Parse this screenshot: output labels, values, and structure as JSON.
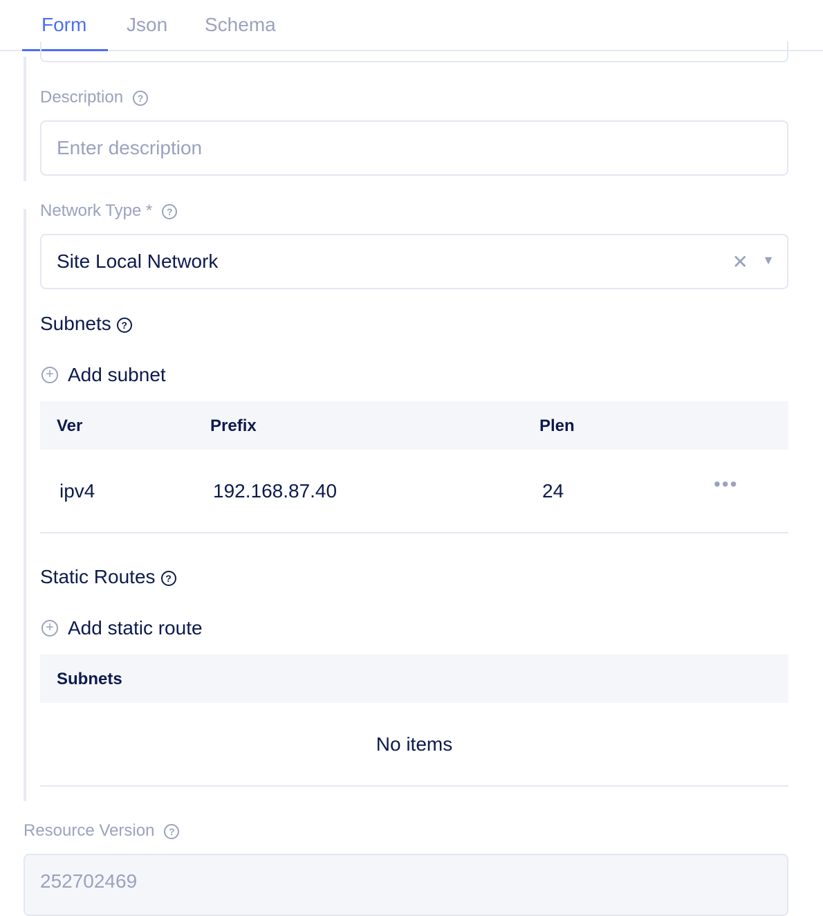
{
  "tabs": [
    {
      "label": "Form",
      "active": true
    },
    {
      "label": "Json"
    },
    {
      "label": "Schema"
    }
  ],
  "description": {
    "label": "Description",
    "placeholder": "Enter description"
  },
  "network_type": {
    "label": "Network Type *",
    "value": "Site Local Network"
  },
  "subnets": {
    "title": "Subnets",
    "add_label": "Add subnet",
    "columns": [
      "Ver",
      "Prefix",
      "Plen"
    ],
    "rows": [
      {
        "ver": "ipv4",
        "prefix": "192.168.87.40",
        "plen": "24"
      }
    ]
  },
  "static_routes": {
    "title": "Static Routes",
    "add_label": "Add static route",
    "columns": [
      "Subnets"
    ],
    "empty": "No items"
  },
  "resource_version": {
    "label": "Resource Version",
    "value": "252702469"
  },
  "colors": {
    "accent": "#4c6ef5",
    "muted": "#9aa2bf",
    "text": "#0d1a4d"
  }
}
